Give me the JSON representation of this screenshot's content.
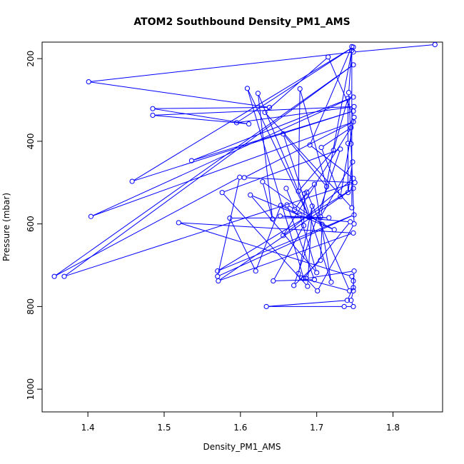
{
  "chart_data": {
    "type": "line",
    "title": "ATOM2 Southbound Density_PM1_AMS",
    "xlabel": "Density_PM1_AMS",
    "ylabel": "Pressure (mbar)",
    "xlim": [
      1.34,
      1.865
    ],
    "ylim": [
      1055,
      160
    ],
    "y_reversed": true,
    "xticks": [
      "1.4",
      "1.5",
      "1.6",
      "1.7",
      "1.8"
    ],
    "yticks": [
      "200",
      "400",
      "600",
      "800",
      "1000"
    ],
    "grid": false,
    "line_color": "#0000ff",
    "marker": "open-circle",
    "series": [
      {
        "points": [
          [
            1.855,
            166
          ],
          [
            1.748,
            184
          ],
          [
            1.401,
            256
          ],
          [
            1.638,
            318
          ],
          [
            1.485,
            321
          ],
          [
            1.611,
            358
          ],
          [
            1.485,
            337
          ],
          [
            1.749,
            316
          ],
          [
            1.595,
            355
          ],
          [
            1.748,
            172
          ],
          [
            1.458,
            497
          ],
          [
            1.748,
            327
          ],
          [
            1.536,
            447
          ],
          [
            1.748,
            293
          ],
          [
            1.404,
            582
          ],
          [
            1.748,
            353
          ],
          [
            1.605,
            488
          ],
          [
            1.75,
            500
          ],
          [
            1.369,
            727
          ],
          [
            1.748,
            215
          ],
          [
            1.356,
            727
          ],
          [
            1.599,
            487
          ],
          [
            1.57,
            727
          ],
          [
            1.749,
            578
          ],
          [
            1.57,
            714
          ],
          [
            1.748,
            514
          ],
          [
            1.571,
            738
          ],
          [
            1.748,
            622
          ],
          [
            1.519,
            597
          ],
          [
            1.746,
            727
          ],
          [
            1.748,
            738
          ],
          [
            1.748,
            762
          ],
          [
            1.745,
            785
          ],
          [
            1.748,
            800
          ],
          [
            1.736,
            800
          ],
          [
            1.634,
            800
          ],
          [
            1.74,
            785
          ],
          [
            1.748,
            754
          ],
          [
            1.749,
            714
          ],
          [
            1.686,
            732
          ],
          [
            1.701,
            762
          ],
          [
            1.749,
            600
          ],
          [
            1.745,
            406
          ],
          [
            1.742,
            282
          ],
          [
            1.746,
            171
          ],
          [
            1.691,
            409
          ],
          [
            1.748,
            490
          ],
          [
            1.656,
            628
          ],
          [
            1.745,
            367
          ],
          [
            1.706,
            415
          ],
          [
            1.731,
            534
          ],
          [
            1.749,
            342
          ],
          [
            1.715,
            196
          ],
          [
            1.632,
            330
          ],
          [
            1.746,
            561
          ],
          [
            1.746,
            180
          ],
          [
            1.705,
            583
          ],
          [
            1.747,
            450
          ],
          [
            1.741,
            524
          ],
          [
            1.741,
            405
          ],
          [
            1.741,
            296
          ],
          [
            1.722,
            422
          ],
          [
            1.676,
            521
          ],
          [
            1.678,
            273
          ],
          [
            1.713,
            510
          ],
          [
            1.656,
            382
          ],
          [
            1.719,
            741
          ],
          [
            1.697,
            504
          ],
          [
            1.684,
            527
          ],
          [
            1.683,
            604
          ],
          [
            1.643,
            738
          ],
          [
            1.697,
            735
          ],
          [
            1.661,
            554
          ],
          [
            1.723,
            614
          ],
          [
            1.613,
            530
          ],
          [
            1.7,
            718
          ],
          [
            1.678,
            579
          ],
          [
            1.653,
            555
          ],
          [
            1.62,
            714
          ],
          [
            1.586,
            586
          ],
          [
            1.716,
            585
          ],
          [
            1.652,
            581
          ],
          [
            1.744,
            595
          ],
          [
            1.683,
            732
          ],
          [
            1.609,
            272
          ],
          [
            1.69,
            584
          ],
          [
            1.623,
            284
          ],
          [
            1.642,
            588
          ],
          [
            1.629,
            498
          ],
          [
            1.707,
            601
          ],
          [
            1.705,
            688
          ],
          [
            1.67,
            749
          ],
          [
            1.731,
            419
          ],
          [
            1.576,
            524
          ],
          [
            1.688,
            751
          ],
          [
            1.694,
            557
          ],
          [
            1.676,
            720
          ],
          [
            1.68,
            731
          ],
          [
            1.743,
            762
          ],
          [
            1.687,
            523
          ],
          [
            1.671,
            565
          ],
          [
            1.66,
            514
          ]
        ]
      }
    ]
  }
}
